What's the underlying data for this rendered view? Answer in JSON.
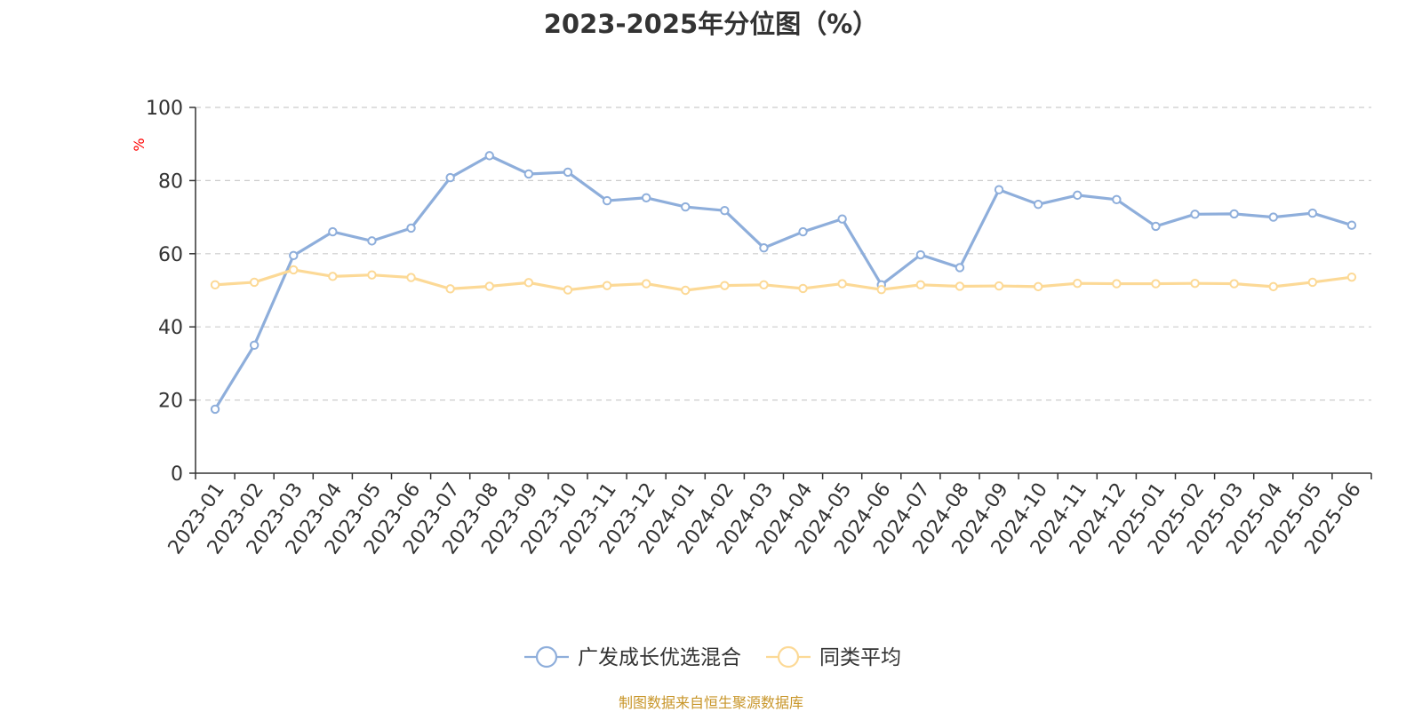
{
  "title": "2023-2025年分位图（%）",
  "source_note": "制图数据来自恒生聚源数据库",
  "colors": {
    "series_1": "#8eaedb",
    "series_2": "#fcd996",
    "grid": "#cccccc",
    "axis": "#333333",
    "unit_label": "#ff0000",
    "source": "#c8962a"
  },
  "chart_data": {
    "type": "line",
    "title": "2023-2025年分位图（%）",
    "xlabel": "",
    "ylabel": "%",
    "ylim": [
      0,
      100
    ],
    "y_ticks": [
      "0",
      "20",
      "40",
      "60",
      "80",
      "100"
    ],
    "grid": true,
    "legend_position": "bottom-center",
    "categories": [
      "2023-01",
      "2023-02",
      "2023-03",
      "2023-04",
      "2023-05",
      "2023-06",
      "2023-07",
      "2023-08",
      "2023-09",
      "2023-10",
      "2023-11",
      "2023-12",
      "2024-01",
      "2024-02",
      "2024-03",
      "2024-04",
      "2024-05",
      "2024-06",
      "2024-07",
      "2024-08",
      "2024-09",
      "2024-10",
      "2024-11",
      "2024-12",
      "2025-01",
      "2025-02",
      "2025-03",
      "2025-04",
      "2025-05",
      "2025-06"
    ],
    "series": [
      {
        "name": "广发成长优选混合",
        "color": "#8eaedb",
        "values": [
          17.5,
          35.0,
          59.5,
          66.0,
          63.5,
          67.0,
          80.8,
          86.8,
          81.8,
          82.3,
          74.5,
          75.3,
          72.8,
          71.8,
          61.6,
          66.0,
          69.5,
          51.5,
          59.7,
          56.2,
          77.5,
          73.5,
          76.0,
          74.8,
          67.5,
          70.8,
          70.9,
          70.0,
          71.1,
          67.8
        ]
      },
      {
        "name": "同类平均",
        "color": "#fcd996",
        "values": [
          51.5,
          52.2,
          55.6,
          53.8,
          54.2,
          53.5,
          50.4,
          51.1,
          52.1,
          50.1,
          51.3,
          51.8,
          50.0,
          51.3,
          51.5,
          50.5,
          51.8,
          50.2,
          51.5,
          51.1,
          51.2,
          51.0,
          51.9,
          51.8,
          51.8,
          51.9,
          51.8,
          51.0,
          52.2,
          53.6
        ]
      }
    ]
  }
}
